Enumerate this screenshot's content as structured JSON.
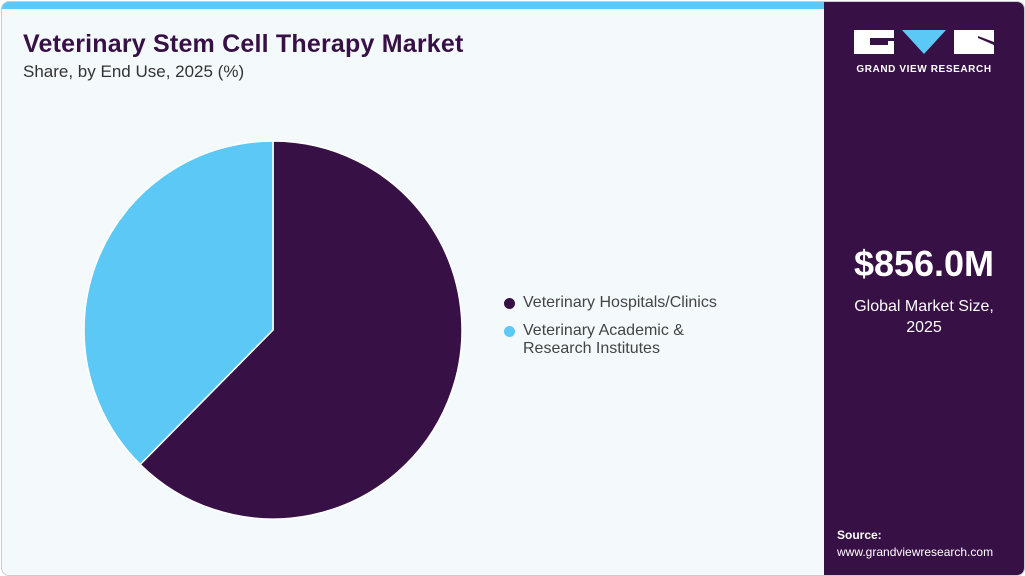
{
  "header": {
    "title": "Veterinary Stem Cell Therapy Market",
    "subtitle": "Share, by End Use, 2025 (%)"
  },
  "colors": {
    "accent": "#5bc8f5",
    "brand": "#371045",
    "background": "#f4f9fc"
  },
  "chart_data": {
    "type": "pie",
    "title": "Veterinary Stem Cell Therapy Market",
    "subtitle": "Share, by End Use, 2025 (%)",
    "categories": [
      "Veterinary Hospitals/Clinics",
      "Veterinary Academic & Research Institutes"
    ],
    "values": [
      62.4,
      37.6
    ],
    "colors": [
      "#371045",
      "#5bc8f5"
    ],
    "start_angle": "12 o'clock, clockwise",
    "legend": "right"
  },
  "legend": {
    "items": [
      {
        "label": "Veterinary Hospitals/Clinics",
        "line1": "Veterinary Hospitals/Clinics",
        "line2": ""
      },
      {
        "label": "Veterinary Academic & Research Institutes",
        "line1": "Veterinary Academic &",
        "line2": "Research Institutes"
      }
    ]
  },
  "sidebar": {
    "logo_text": "GRAND VIEW RESEARCH",
    "market_value": "$856.0M",
    "market_label_1": "Global Market Size,",
    "market_label_2": "2025",
    "source_label": "Source:",
    "source_url": "www.grandviewresearch.com"
  }
}
